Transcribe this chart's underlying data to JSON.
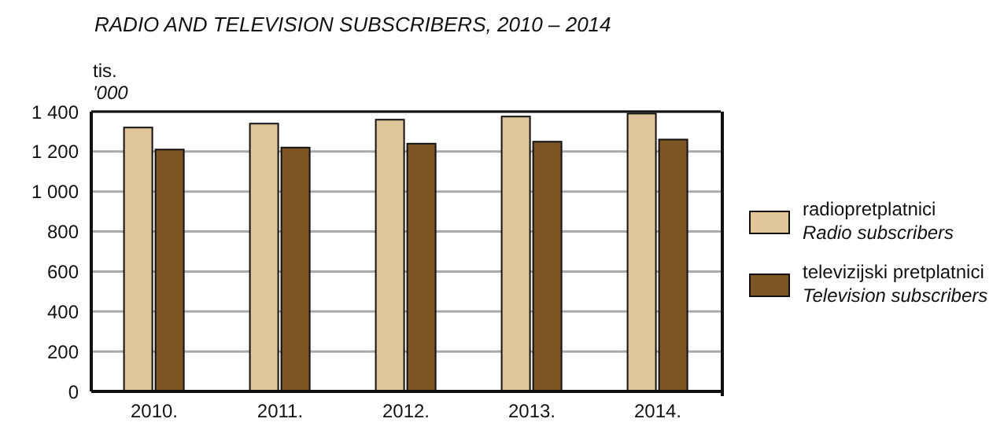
{
  "chart_data": {
    "type": "bar",
    "title": "RADIO AND TELEVISION SUBSCRIBERS, 2010 – 2014",
    "ylabel": "tis.\n'000",
    "categories": [
      "2010.",
      "2011.",
      "2012.",
      "2013.",
      "2014."
    ],
    "series": [
      {
        "name": "radiopretplatnici\nRadio subscribers",
        "color": "#e0c598",
        "values": [
          1320,
          1340,
          1360,
          1375,
          1390
        ]
      },
      {
        "name": "televizijski pretplatnici\nTelevision subscribers",
        "color": "#7d5522",
        "values": [
          1210,
          1220,
          1240,
          1250,
          1260
        ]
      }
    ],
    "ylim": [
      0,
      1400
    ],
    "yticks": [
      0,
      200,
      400,
      600,
      800,
      1000,
      1200,
      {
        "value": 1400,
        "label": "1 400"
      }
    ],
    "grid": "y",
    "legend": "right"
  }
}
